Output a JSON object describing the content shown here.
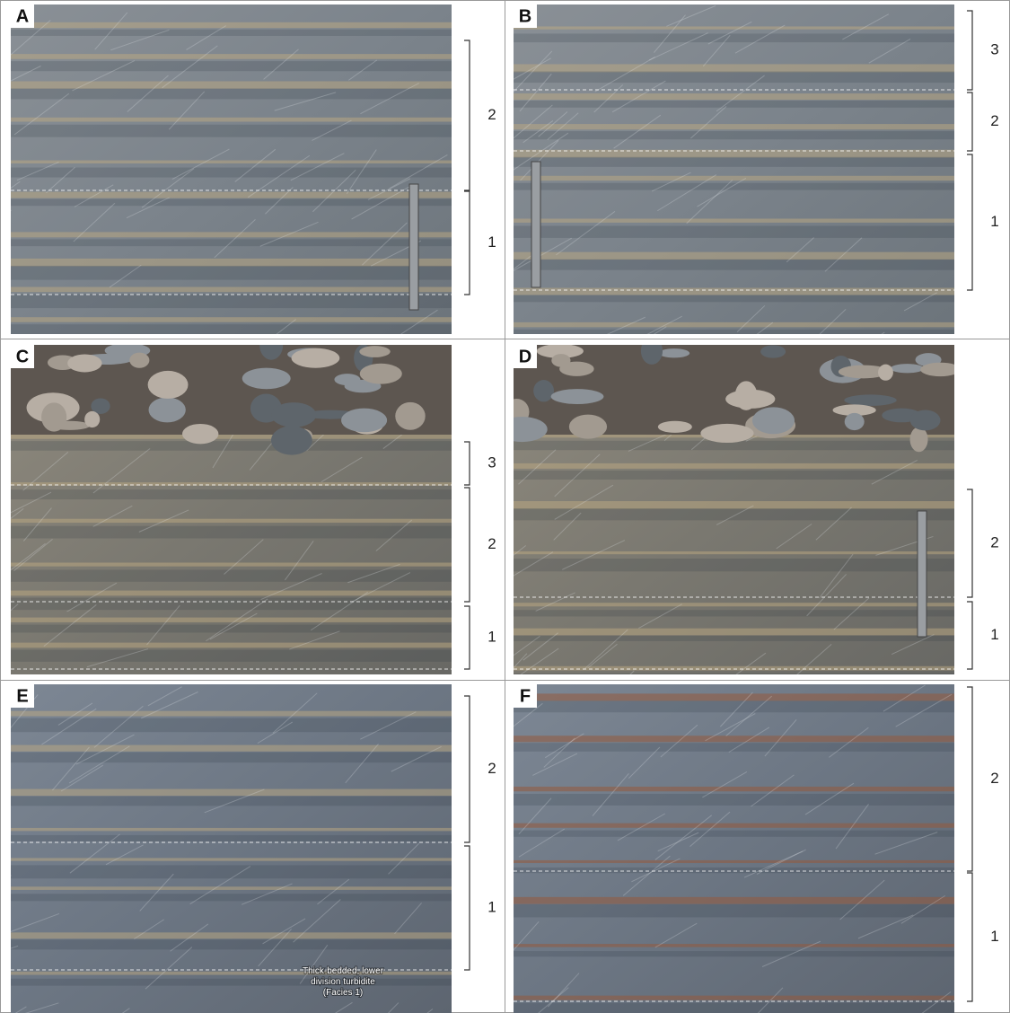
{
  "panels": [
    {
      "label": "A",
      "units": [
        "2",
        "1"
      ]
    },
    {
      "label": "B",
      "units": [
        "3",
        "2",
        "1"
      ]
    },
    {
      "label": "C",
      "units": [
        "3",
        "2",
        "1"
      ]
    },
    {
      "label": "D",
      "units": [
        "2",
        "1"
      ]
    },
    {
      "label": "E",
      "units": [
        "2",
        "1"
      ],
      "caption": [
        "Thick-bedded, lower",
        "division turbidite",
        "(Facies 1)"
      ]
    },
    {
      "label": "F",
      "units": [
        "2",
        "1"
      ]
    }
  ]
}
